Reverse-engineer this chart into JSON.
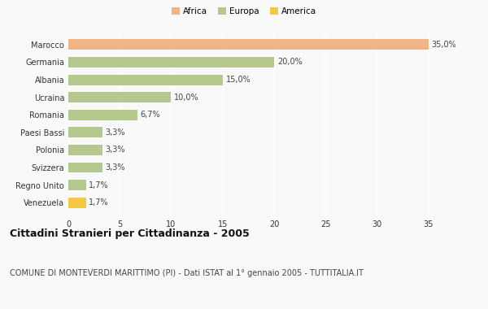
{
  "categories": [
    "Venezuela",
    "Regno Unito",
    "Svizzera",
    "Polonia",
    "Paesi Bassi",
    "Romania",
    "Ucraina",
    "Albania",
    "Germania",
    "Marocco"
  ],
  "values": [
    1.7,
    1.7,
    3.3,
    3.3,
    3.3,
    6.7,
    10.0,
    15.0,
    20.0,
    35.0
  ],
  "labels": [
    "1,7%",
    "1,7%",
    "3,3%",
    "3,3%",
    "3,3%",
    "6,7%",
    "10,0%",
    "15,0%",
    "20,0%",
    "35,0%"
  ],
  "colors": [
    "#f5c842",
    "#b5c98e",
    "#b5c98e",
    "#b5c98e",
    "#b5c98e",
    "#b5c98e",
    "#b5c98e",
    "#b5c98e",
    "#b5c98e",
    "#f0b485"
  ],
  "legend_labels": [
    "Africa",
    "Europa",
    "America"
  ],
  "legend_colors": [
    "#f0b485",
    "#b5c98e",
    "#f5c842"
  ],
  "title": "Cittadini Stranieri per Cittadinanza - 2005",
  "subtitle": "COMUNE DI MONTEVERDI MARITTIMO (PI) - Dati ISTAT al 1° gennaio 2005 - TUTTITALIA.IT",
  "xlim": [
    0,
    37
  ],
  "xticks": [
    0,
    5,
    10,
    15,
    20,
    25,
    30,
    35
  ],
  "background_color": "#f9f9f9",
  "grid_color": "#ffffff",
  "bar_height": 0.6,
  "title_fontsize": 9,
  "subtitle_fontsize": 7,
  "label_fontsize": 7,
  "tick_fontsize": 7,
  "legend_fontsize": 7.5
}
